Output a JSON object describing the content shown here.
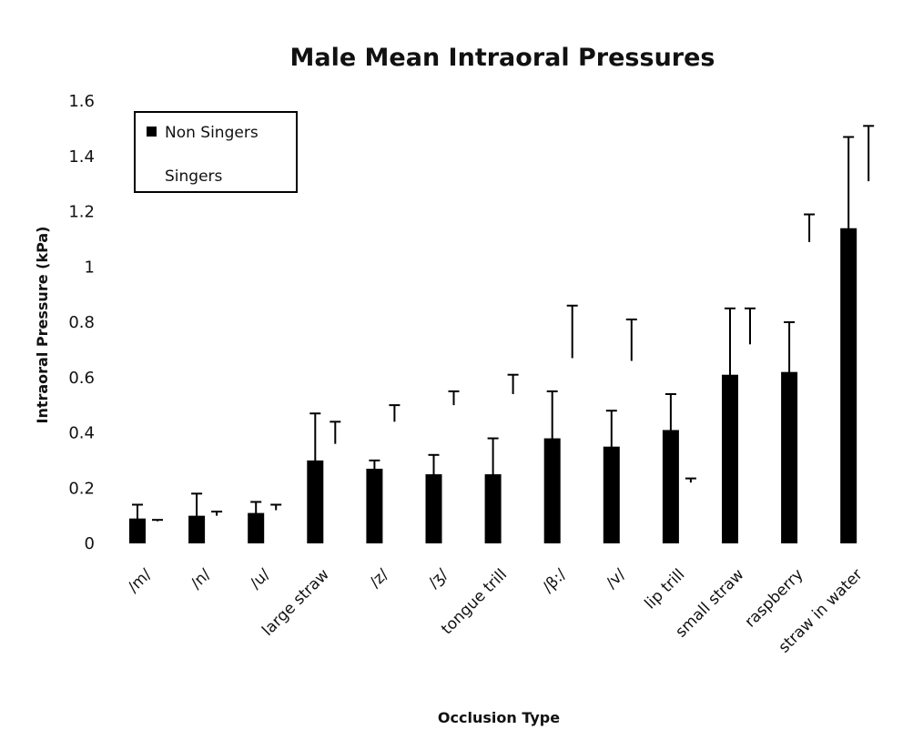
{
  "chart_data": {
    "type": "bar",
    "title": "Male Mean Intraoral Pressures",
    "xlabel": "Occlusion Type",
    "ylabel": "Intraoral Pressure (kPa)",
    "ylim": [
      0,
      1.6
    ],
    "yticks": [
      "0",
      "0.2",
      "0.4",
      "0.6",
      "0.8",
      "1",
      "1.2",
      "1.4",
      "1.6"
    ],
    "ytick_values": [
      0,
      0.2,
      0.4,
      0.6,
      0.8,
      1.0,
      1.2,
      1.4,
      1.6
    ],
    "grid": false,
    "legend_position": "top-left",
    "categories": [
      "/m/",
      "/n/",
      "/u/",
      "large straw",
      "/z/",
      "/ʒ/",
      "tongue trill",
      "/β:/",
      "/v/",
      "lip trill",
      "small straw",
      "raspberry",
      "straw in water"
    ],
    "series": [
      {
        "name": "Non Singers",
        "color": "#000000",
        "values": [
          0.09,
          0.1,
          0.11,
          0.3,
          0.27,
          0.25,
          0.25,
          0.38,
          0.35,
          0.41,
          0.61,
          0.62,
          1.14
        ],
        "error": [
          0.05,
          0.08,
          0.04,
          0.17,
          0.03,
          0.07,
          0.13,
          0.17,
          0.13,
          0.13,
          0.24,
          0.18,
          0.33
        ]
      },
      {
        "name": "Singers",
        "color": "#ffffff",
        "values": [
          0.08,
          0.1,
          0.12,
          0.36,
          0.44,
          0.5,
          0.54,
          0.67,
          0.66,
          0.22,
          0.72,
          1.09,
          1.31
        ],
        "error": [
          0.005,
          0.015,
          0.02,
          0.08,
          0.06,
          0.05,
          0.07,
          0.19,
          0.15,
          0.015,
          0.13,
          0.1,
          0.2
        ]
      }
    ]
  }
}
